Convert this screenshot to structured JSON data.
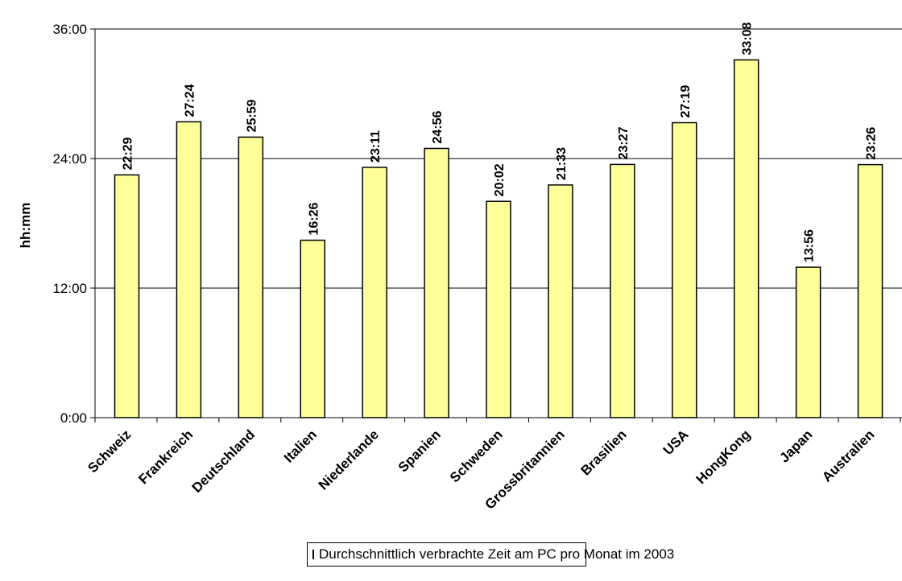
{
  "chart_data": {
    "type": "bar",
    "title": "",
    "xlabel": "",
    "ylabel": "hh:mm",
    "ylim_minutes": [
      0,
      2160
    ],
    "y_ticks": [
      {
        "label": "0:00",
        "minutes": 0
      },
      {
        "label": "12:00",
        "minutes": 720
      },
      {
        "label": "24:00",
        "minutes": 1440
      },
      {
        "label": "36:00",
        "minutes": 2160
      }
    ],
    "grid": true,
    "legend_position": "bottom",
    "categories": [
      "Schweiz",
      "Frankreich",
      "Deutschland",
      "Italien",
      "Niederlande",
      "Spanien",
      "Schweden",
      "Grossbritannien",
      "Brasilien",
      "USA",
      "HongKong",
      "Japan",
      "Australien"
    ],
    "series": [
      {
        "name": "Durchschnittlich verbrachte Zeit am PC pro Monat im 2003",
        "labels": [
          "22:29",
          "27:24",
          "25:59",
          "16:26",
          "23:11",
          "24:56",
          "20:02",
          "21:33",
          "23:27",
          "27:19",
          "33:08",
          "13:56",
          "23:26"
        ],
        "values_minutes": [
          1349,
          1644,
          1559,
          986,
          1391,
          1496,
          1202,
          1293,
          1407,
          1639,
          1988,
          836,
          1406
        ]
      }
    ],
    "colors": {
      "bar_fill": "#ffff99",
      "bar_stroke": "#000000",
      "grid": "#000000"
    }
  }
}
